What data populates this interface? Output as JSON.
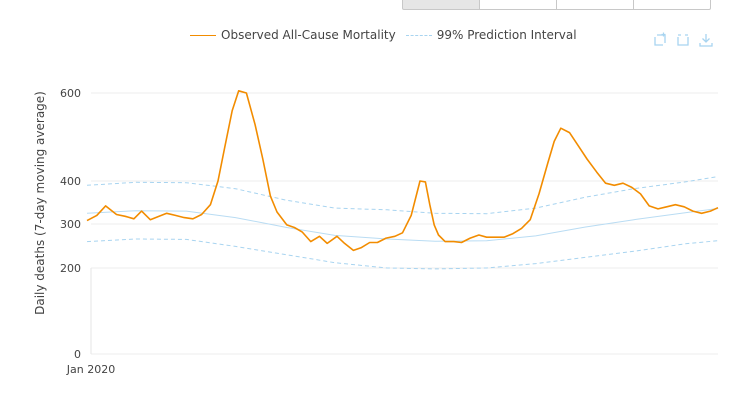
{
  "controls": {
    "buttons": [
      "",
      "",
      "",
      ""
    ]
  },
  "legend": {
    "observed_label": "Observed All-Cause Mortality",
    "interval_label": "99% Prediction Interval"
  },
  "toolbar": {
    "icons": [
      "zoom-in-icon",
      "zoom-reset-icon",
      "download-icon"
    ]
  },
  "colors": {
    "observed": "#f28c00",
    "interval": "#a8d4f0",
    "expected": "#b9dcf3",
    "grid": "#ececec"
  },
  "chart_data": {
    "type": "line",
    "title": "",
    "ylabel": "Daily deaths (7-day moving average)",
    "xlabel": "",
    "x_tick_labels": [
      "Jan 2020"
    ],
    "y_ticks": [
      0,
      200,
      300,
      400,
      600
    ],
    "y_axis_scale": "nonlinear",
    "ylim": [
      0,
      600
    ],
    "x_range": [
      "2019-12-01",
      "2021-07-01"
    ],
    "grid": true,
    "legend_position": "top",
    "series": [
      {
        "name": "Observed All-Cause Mortality",
        "x": [
          "2019-12-01",
          "2019-12-10",
          "2019-12-18",
          "2019-12-28",
          "2020-01-05",
          "2020-01-13",
          "2020-01-20",
          "2020-01-28",
          "2020-02-05",
          "2020-02-12",
          "2020-02-20",
          "2020-02-28",
          "2020-03-07",
          "2020-03-15",
          "2020-03-23",
          "2020-03-30",
          "2020-04-05",
          "2020-04-12",
          "2020-04-18",
          "2020-04-25",
          "2020-05-03",
          "2020-05-10",
          "2020-05-17",
          "2020-05-23",
          "2020-06-01",
          "2020-06-08",
          "2020-06-15",
          "2020-06-23",
          "2020-07-01",
          "2020-07-08",
          "2020-07-17",
          "2020-07-24",
          "2020-08-01",
          "2020-08-08",
          "2020-08-16",
          "2020-08-23",
          "2020-08-31",
          "2020-09-08",
          "2020-09-15",
          "2020-09-23",
          "2020-10-01",
          "2020-10-06",
          "2020-10-10",
          "2020-10-14",
          "2020-10-18",
          "2020-10-24",
          "2020-11-01",
          "2020-11-08",
          "2020-11-16",
          "2020-11-24",
          "2020-12-01",
          "2020-12-09",
          "2020-12-17",
          "2020-12-25",
          "2021-01-02",
          "2021-01-10",
          "2021-01-18",
          "2021-01-26",
          "2021-02-01",
          "2021-02-07",
          "2021-02-15",
          "2021-02-23",
          "2021-03-03",
          "2021-03-12",
          "2021-03-20",
          "2021-03-28",
          "2021-04-05",
          "2021-04-13",
          "2021-04-21",
          "2021-04-29",
          "2021-05-07",
          "2021-05-15",
          "2021-05-23",
          "2021-05-31",
          "2021-06-08",
          "2021-06-16",
          "2021-06-24",
          "2021-07-01"
        ],
        "values": [
          308,
          320,
          342,
          322,
          318,
          312,
          330,
          310,
          318,
          325,
          320,
          315,
          312,
          322,
          345,
          400,
          475,
          560,
          605,
          600,
          528,
          450,
          365,
          328,
          298,
          292,
          282,
          260,
          272,
          256,
          272,
          256,
          240,
          246,
          258,
          258,
          268,
          272,
          280,
          320,
          400,
          398,
          345,
          298,
          275,
          260,
          260,
          258,
          268,
          275,
          270,
          270,
          270,
          278,
          290,
          310,
          370,
          440,
          490,
          520,
          510,
          480,
          450,
          420,
          395,
          390,
          395,
          385,
          370,
          342,
          335,
          340,
          345,
          340,
          330,
          325,
          330,
          338
        ]
      },
      {
        "name": "99% Prediction Interval",
        "role": "upper",
        "x": [
          "2019-12-01",
          "2020-01-15",
          "2020-03-01",
          "2020-04-15",
          "2020-06-01",
          "2020-07-15",
          "2020-09-01",
          "2020-10-15",
          "2020-12-01",
          "2021-01-15",
          "2021-03-01",
          "2021-04-15",
          "2021-06-01",
          "2021-07-01"
        ],
        "values": [
          390,
          397,
          396,
          382,
          355,
          337,
          333,
          325,
          324,
          337,
          362,
          382,
          398,
          410
        ]
      },
      {
        "name": "99% Prediction Interval",
        "role": "lower",
        "x": [
          "2019-12-01",
          "2020-01-15",
          "2020-03-01",
          "2020-04-15",
          "2020-06-01",
          "2020-07-15",
          "2020-09-01",
          "2020-10-15",
          "2020-12-01",
          "2021-01-15",
          "2021-03-01",
          "2021-04-15",
          "2021-06-01",
          "2021-07-01"
        ],
        "values": [
          260,
          266,
          265,
          249,
          230,
          212,
          200,
          198,
          200,
          210,
          224,
          238,
          255,
          262
        ]
      },
      {
        "name": "",
        "role": "expected",
        "x": [
          "2019-12-01",
          "2020-01-15",
          "2020-03-01",
          "2020-04-15",
          "2020-06-01",
          "2020-07-15",
          "2020-09-01",
          "2020-10-15",
          "2020-12-01",
          "2021-01-15",
          "2021-03-01",
          "2021-04-15",
          "2021-06-01",
          "2021-07-01"
        ],
        "values": [
          325,
          331,
          330,
          315,
          292,
          274,
          266,
          261,
          262,
          273,
          293,
          310,
          326,
          336
        ]
      }
    ]
  }
}
